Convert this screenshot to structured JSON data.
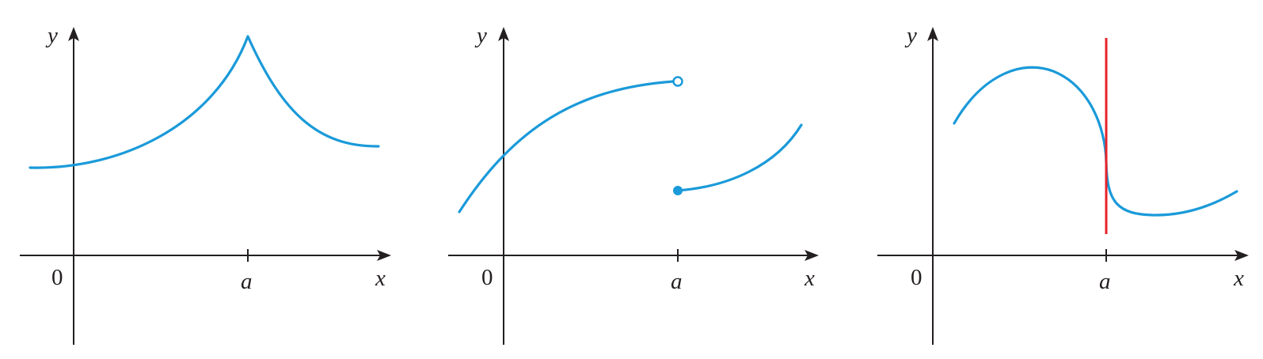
{
  "colors": {
    "axis": "#231f20",
    "curve": "#1a9ad9",
    "vertical_line": "#e8232a"
  },
  "panels": [
    {
      "labels": {
        "y": "y",
        "x": "x",
        "origin": "0",
        "a": "a"
      },
      "features": [
        "cusp-at-a"
      ]
    },
    {
      "labels": {
        "y": "y",
        "x": "x",
        "origin": "0",
        "a": "a"
      },
      "features": [
        "jump-discontinuity-at-a",
        "open-circle-left",
        "filled-dot-right"
      ]
    },
    {
      "labels": {
        "y": "y",
        "x": "x",
        "origin": "0",
        "a": "a"
      },
      "features": [
        "vertical-tangent-at-a",
        "vertical-line-at-a"
      ]
    }
  ]
}
